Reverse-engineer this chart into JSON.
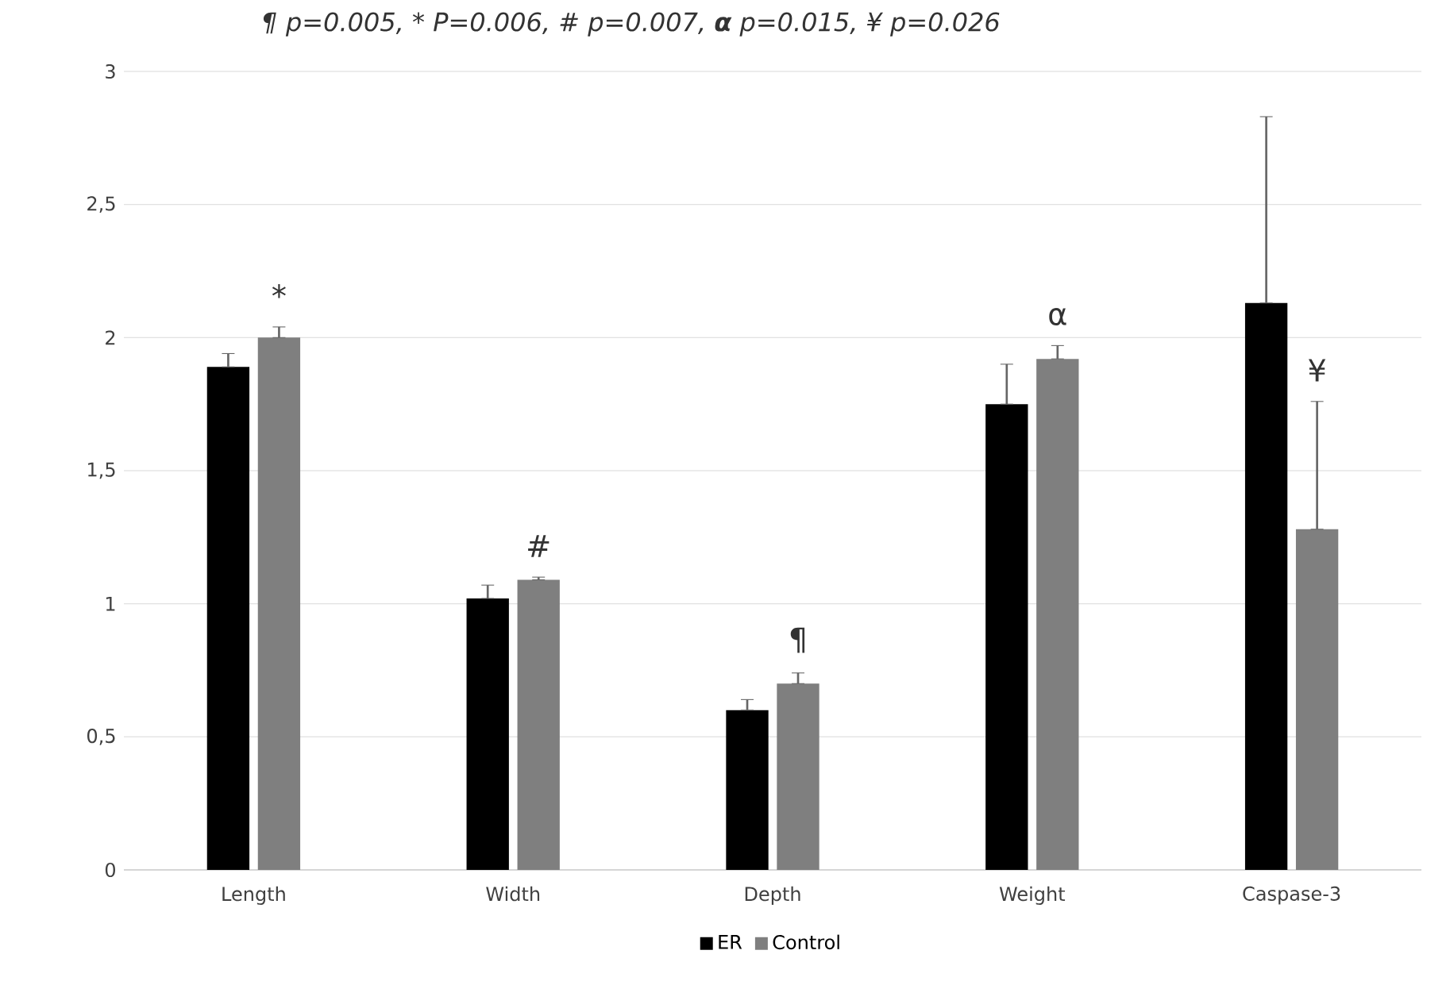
{
  "chart_data": {
    "type": "bar",
    "title": "¶ p=0.005, * P=0.006, # p=0.007, **α** p=0.015, ¥ p=0.026",
    "categories": [
      "Length",
      "Width",
      "Depth",
      "Weight",
      "Caspase-3"
    ],
    "series": [
      {
        "name": "ER",
        "color": "#000000",
        "values": [
          1.89,
          1.02,
          0.6,
          1.75,
          2.13
        ],
        "errors": [
          [
            1.89,
            1.94
          ],
          [
            1.02,
            1.07
          ],
          [
            0.6,
            0.64
          ],
          [
            1.75,
            1.9
          ],
          [
            2.13,
            2.83
          ]
        ]
      },
      {
        "name": "Control",
        "color": "#7f7f7f",
        "values": [
          2.0,
          1.09,
          0.7,
          1.92,
          1.28
        ],
        "errors": [
          [
            2.0,
            2.04
          ],
          [
            1.09,
            1.1
          ],
          [
            0.7,
            0.74
          ],
          [
            1.92,
            1.97
          ],
          [
            1.28,
            1.76
          ]
        ]
      }
    ],
    "annotations": [
      "*",
      "#",
      "¶",
      "α",
      "¥"
    ],
    "ylim": [
      0,
      3
    ],
    "yticks": [
      0,
      {
        "value": 0.5,
        "label": "0,5"
      },
      1,
      {
        "value": 1.5,
        "label": "1,5"
      },
      2,
      {
        "value": 2.5,
        "label": "2,5"
      },
      3
    ],
    "grid": "y",
    "legend": "bottom"
  }
}
